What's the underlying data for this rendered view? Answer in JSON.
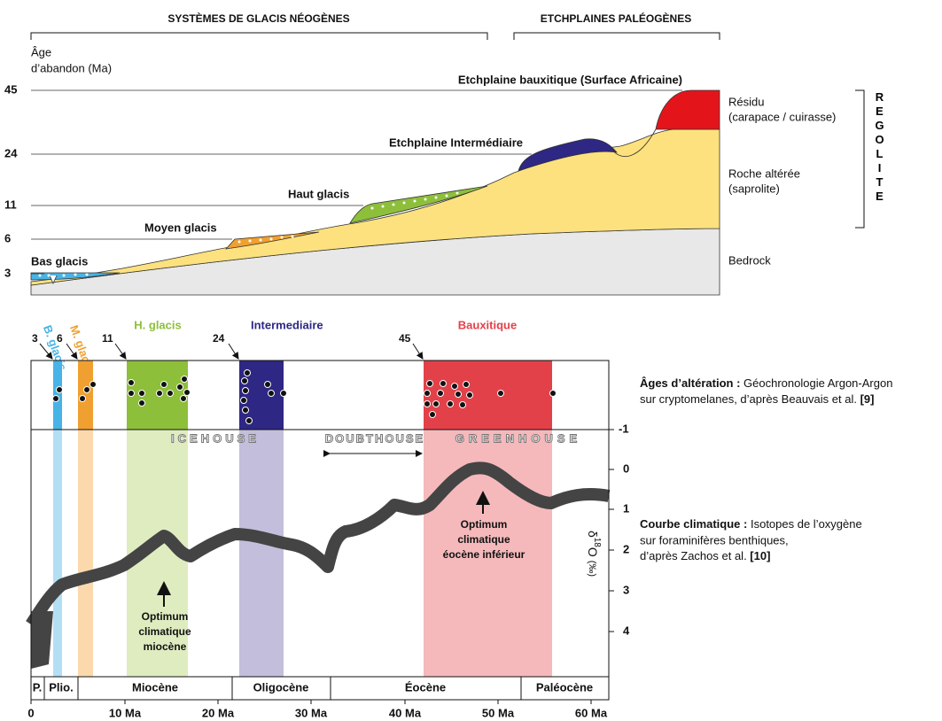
{
  "profile": {
    "headers": [
      "SYSTÈMES DE GLACIS NÉOGÈNES",
      "ETCHPLAINES PALÉOGÈNES"
    ],
    "axis_title": [
      "Âge",
      "d’abandon (Ma)"
    ],
    "ticks": [
      "45",
      "24",
      "11",
      "6",
      "3"
    ],
    "surfaces": [
      "Etchplaine bauxitique (Surface Africaine)",
      "Etchplaine Intermédiaire",
      "Haut glacis",
      "Moyen glacis",
      "Bas glacis"
    ],
    "layers": [
      [
        "Résidu",
        "(carapace / cuirasse)"
      ],
      [
        "Roche altérée",
        "(saprolite)"
      ],
      [
        "Bedrock"
      ]
    ],
    "regolite": "REGOLITE"
  },
  "ages": {
    "bands": [
      "B. glacis",
      "M. glacis",
      "H. glacis",
      "Intermediaire",
      "Bauxitique"
    ],
    "values": [
      "3",
      "6",
      "11",
      "24",
      "45"
    ],
    "note": {
      "bold": "Âges d’altération :",
      "text": " Géochronologie Argon-Argon",
      "line2": "sur cryptomelanes, d’après Beauvais et al. ",
      "ref": "[9]"
    }
  },
  "climate": {
    "regimes": [
      "ICEHOUSE",
      "DOUBTHOUSE",
      "GREENHOUSE"
    ],
    "optima": [
      [
        "Optimum",
        "climatique",
        "miocène"
      ],
      [
        "Optimum",
        "climatique",
        "éocène inférieur"
      ]
    ],
    "yticks": [
      "-1",
      "0",
      "1",
      "2",
      "3",
      "4"
    ],
    "ylabel": {
      "symbol": "δ",
      "sup": "18",
      "element": "O",
      "unit": "(‰)"
    },
    "note": {
      "bold": "Courbe climatique :",
      "text": " Isotopes de l’oxygène",
      "line2": "sur foraminifères benthiques,",
      "line3": "d’après Zachos et al. ",
      "ref": "[10]"
    }
  },
  "epochs": [
    "P.",
    "Plio.",
    "Miocène",
    "Oligocène",
    "Éocène",
    "Paléocène"
  ],
  "xticks": [
    "0",
    "10 Ma",
    "20 Ma",
    "30 Ma",
    "40 Ma",
    "50 Ma",
    "60 Ma"
  ]
}
